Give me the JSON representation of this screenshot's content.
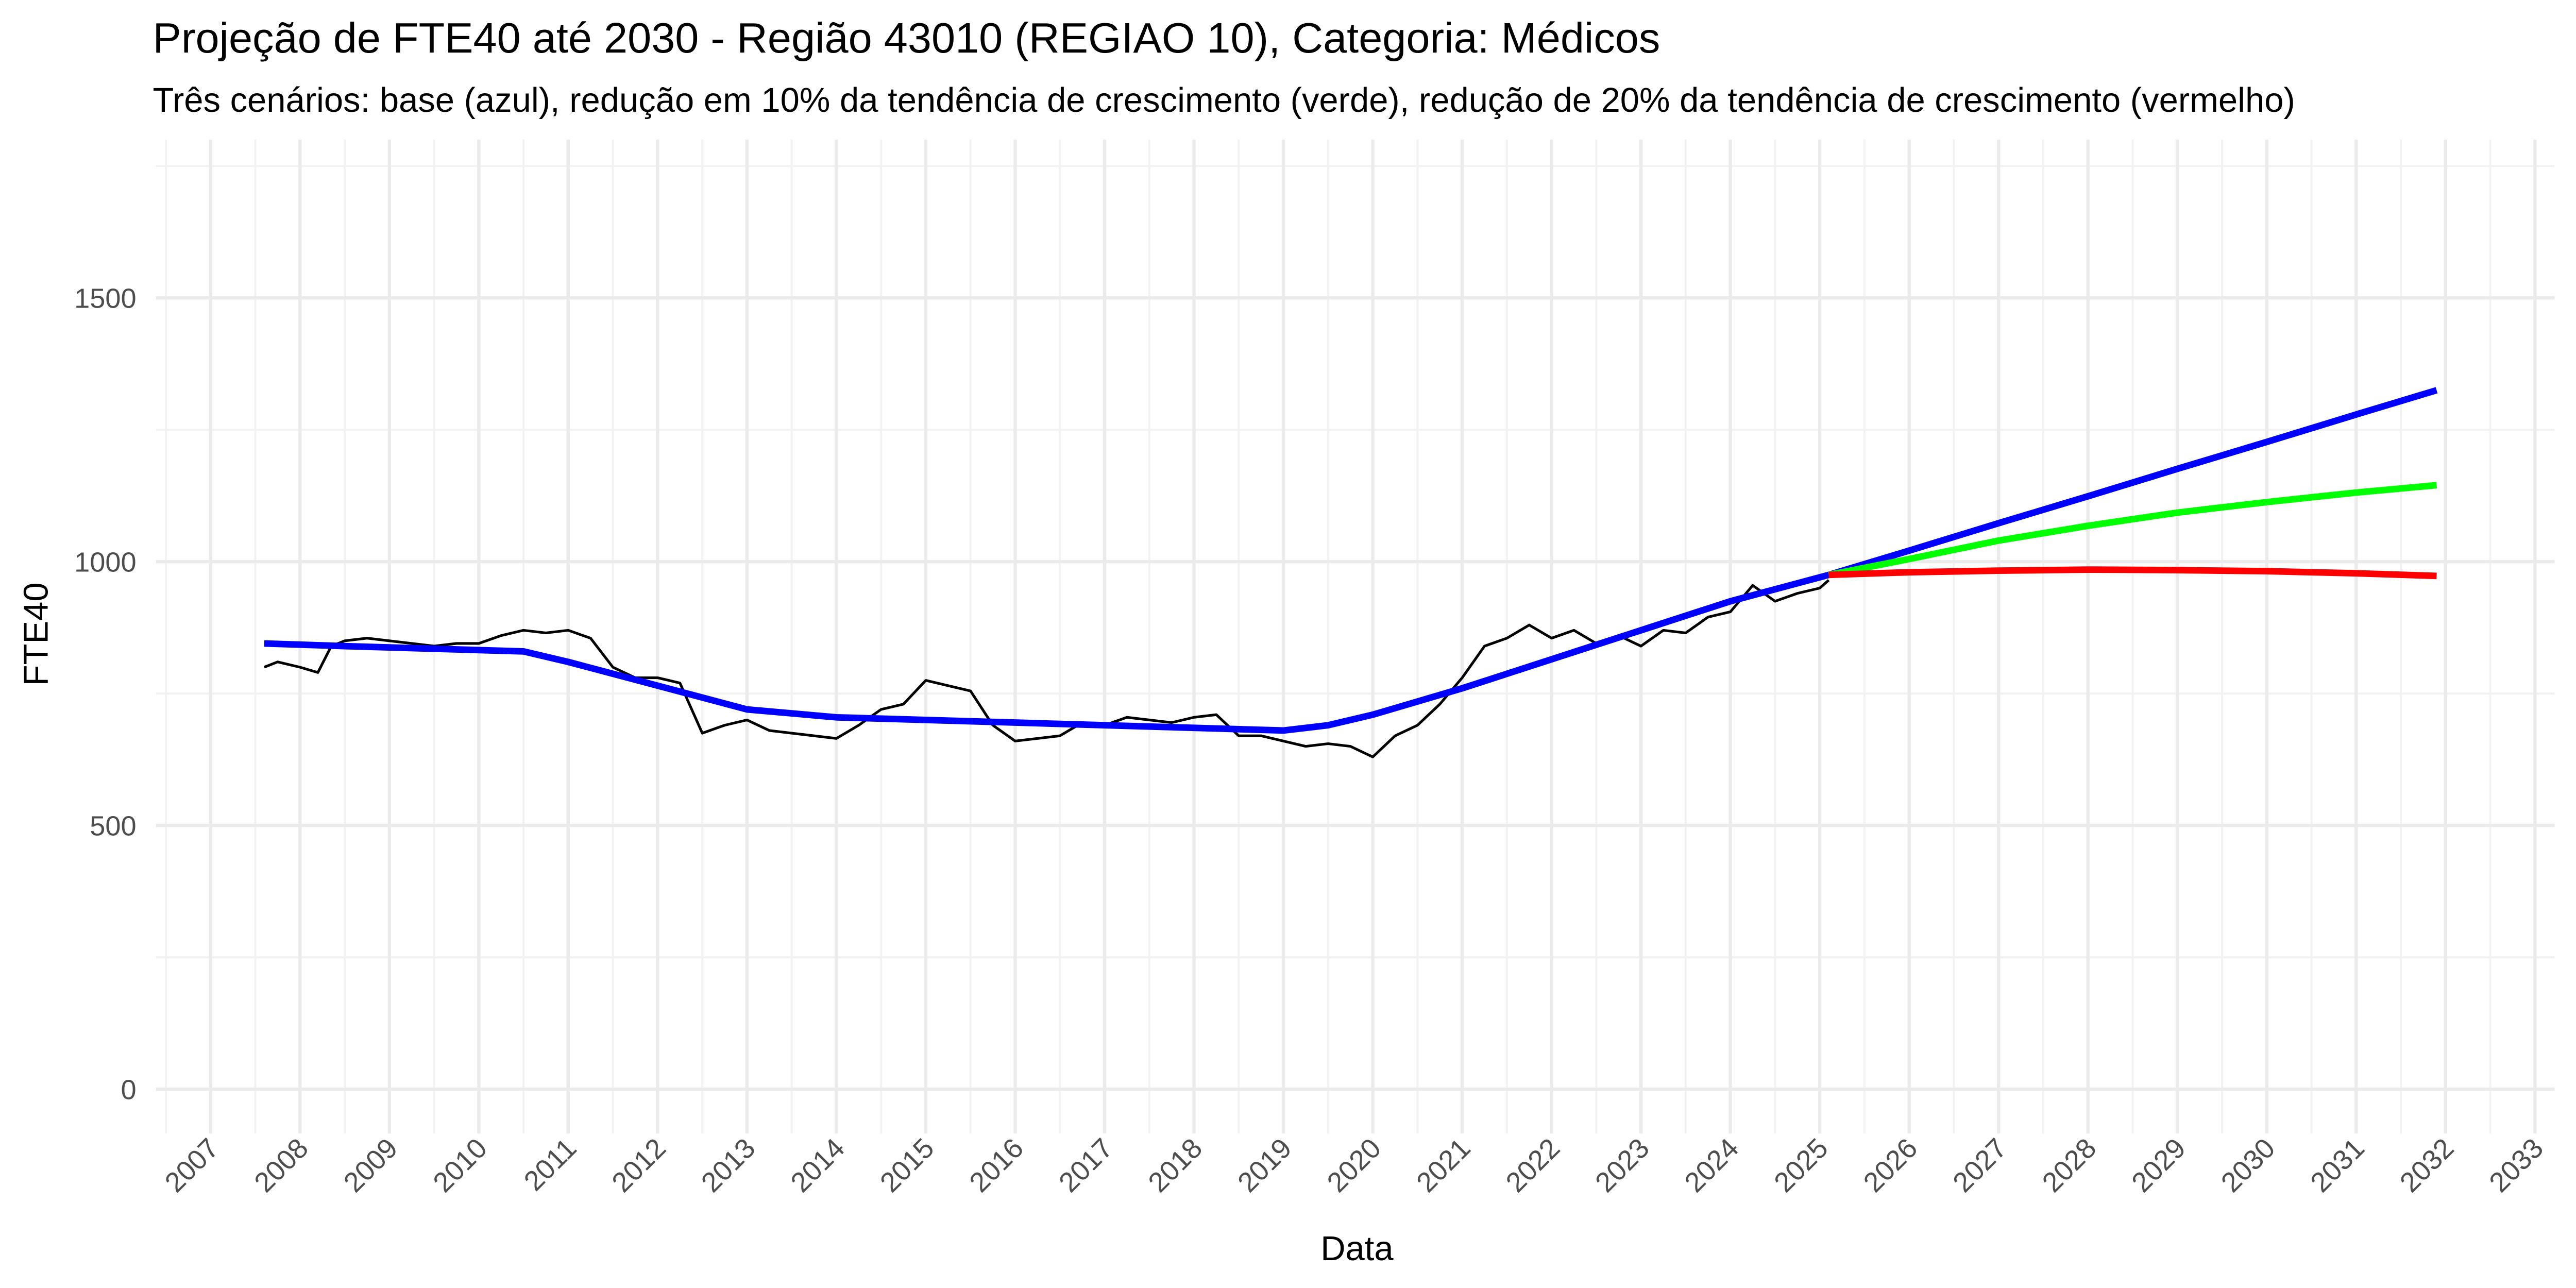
{
  "chart_data": {
    "type": "line",
    "title": "Projeção de FTE40 até 2030 - Região 43010 (REGIAO 10), Categoria: Médicos",
    "subtitle": "Três cenários: base (azul), redução em 10% da tendência de crescimento (verde), redução de 20% da tendência de crescimento (vermelho)",
    "x_label": "Data",
    "y_label": "FTE40",
    "xlim": [
      2006.39,
      2033.22
    ],
    "ylim": [
      -84,
      1800
    ],
    "xticks": [
      2007,
      2008,
      2009,
      2010,
      2011,
      2012,
      2013,
      2014,
      2015,
      2016,
      2017,
      2018,
      2019,
      2020,
      2021,
      2022,
      2023,
      2024,
      2025,
      2026,
      2027,
      2028,
      2029,
      2030,
      2031,
      2032,
      2033
    ],
    "yticks": [
      0,
      500,
      1000,
      1500
    ],
    "grid": true,
    "series": [
      {
        "color": "#000000",
        "width": 1.6,
        "x": [
          2007.6,
          2007.75,
          2008.0,
          2008.2,
          2008.35,
          2008.5,
          2008.75,
          2009.0,
          2009.25,
          2009.5,
          2009.75,
          2010.0,
          2010.25,
          2010.5,
          2010.75,
          2011.0,
          2011.25,
          2011.5,
          2011.75,
          2012.0,
          2012.25,
          2012.5,
          2012.75,
          2013.0,
          2013.25,
          2013.5,
          2013.75,
          2014.0,
          2014.25,
          2014.5,
          2014.75,
          2015.0,
          2015.25,
          2015.5,
          2015.75,
          2016.0,
          2016.25,
          2016.5,
          2016.75,
          2017.0,
          2017.25,
          2017.5,
          2017.75,
          2018.0,
          2018.25,
          2018.5,
          2018.75,
          2019.0,
          2019.25,
          2019.5,
          2019.75,
          2020.0,
          2020.25,
          2020.5,
          2020.75,
          2021.0,
          2021.25,
          2021.5,
          2021.75,
          2022.0,
          2022.25,
          2022.5,
          2022.75,
          2023.0,
          2023.25,
          2023.5,
          2023.75,
          2024.0,
          2024.25,
          2024.5,
          2024.75,
          2025.0,
          2025.1
        ],
        "values": [
          800,
          810,
          800,
          790,
          840,
          850,
          855,
          850,
          845,
          840,
          845,
          845,
          860,
          870,
          865,
          870,
          855,
          800,
          780,
          780,
          770,
          675,
          690,
          700,
          680,
          675,
          670,
          665,
          690,
          720,
          730,
          775,
          765,
          755,
          690,
          660,
          665,
          670,
          695,
          690,
          705,
          700,
          695,
          705,
          710,
          670,
          670,
          660,
          650,
          655,
          650,
          630,
          670,
          690,
          730,
          780,
          840,
          855,
          880,
          855,
          870,
          845,
          860,
          840,
          870,
          865,
          895,
          905,
          955,
          925,
          940,
          950,
          965
        ]
      },
      {
        "color": "#0000ff",
        "width": 4,
        "x": [
          2007.6,
          2008.5,
          2009.5,
          2010.5,
          2011.0,
          2012.0,
          2013.0,
          2014.0,
          2016.0,
          2018.0,
          2019.0,
          2019.5,
          2020.0,
          2021.0,
          2022.0,
          2023.0,
          2024.0,
          2025.1,
          2026,
          2027,
          2028,
          2029,
          2030,
          2031,
          2031.9
        ],
        "values": [
          845,
          840,
          835,
          830,
          810,
          765,
          720,
          705,
          695,
          685,
          680,
          690,
          710,
          760,
          815,
          870,
          925,
          975,
          1021,
          1073,
          1124,
          1176,
          1227,
          1279,
          1325
        ]
      },
      {
        "color": "#00ff00",
        "width": 4,
        "x": [
          2025.1,
          2026,
          2027,
          2028,
          2029,
          2030,
          2031,
          2031.9
        ],
        "values": [
          975,
          1005,
          1040,
          1068,
          1093,
          1113,
          1131,
          1145
        ]
      },
      {
        "color": "#ff0000",
        "width": 4,
        "x": [
          2025.1,
          2026,
          2027,
          2028,
          2029,
          2030,
          2031,
          2031.9
        ],
        "values": [
          975,
          980,
          983,
          985,
          984,
          982,
          978,
          973
        ]
      }
    ]
  }
}
